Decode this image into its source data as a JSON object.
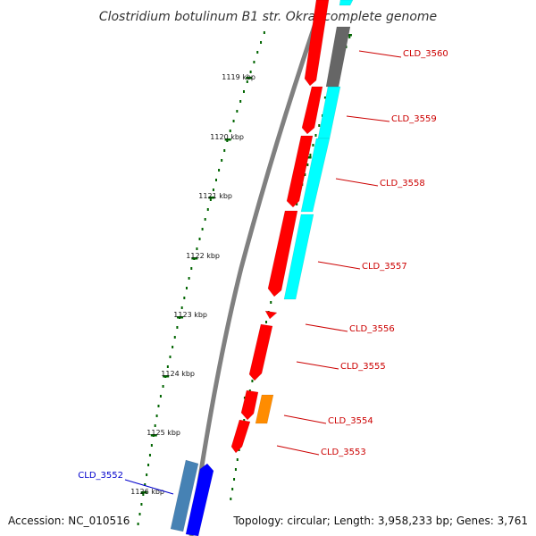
{
  "title": "Clostridium botulinum B1 str. Okra, complete genome",
  "footer": {
    "accession": "Accession: NC_010516",
    "summary": "Topology: circular; Length: 3,958,233 bp; Genes: 3,761"
  },
  "ruler": {
    "labels": [
      "1119 kbp",
      "1120 kbp",
      "1121 kbp",
      "1122 kbp",
      "1123 kbp",
      "1124 kbp",
      "1125 kbp",
      "1126 kbp"
    ]
  },
  "colors": {
    "backbone": "#808080",
    "red_gene": "#ff0000",
    "cyan_gene": "#00ffff",
    "gray_gene": "#666666",
    "orange_gene": "#ff8c00",
    "blue_gene": "#0000ff",
    "steel_gene": "#4682b4",
    "ticks": "#006400",
    "gene_label": "#cc0000",
    "selected_label": "#0000cc"
  },
  "genes": [
    {
      "name": "CLD_3560",
      "color": "red"
    },
    {
      "name": "CLD_3559",
      "color": "red"
    },
    {
      "name": "CLD_3558",
      "color": "red"
    },
    {
      "name": "CLD_3557",
      "color": "red"
    },
    {
      "name": "CLD_3556",
      "color": "red"
    },
    {
      "name": "CLD_3555",
      "color": "red"
    },
    {
      "name": "CLD_3554",
      "color": "red"
    },
    {
      "name": "CLD_3553",
      "color": "red"
    },
    {
      "name": "CLD_3552",
      "color": "blue"
    }
  ]
}
